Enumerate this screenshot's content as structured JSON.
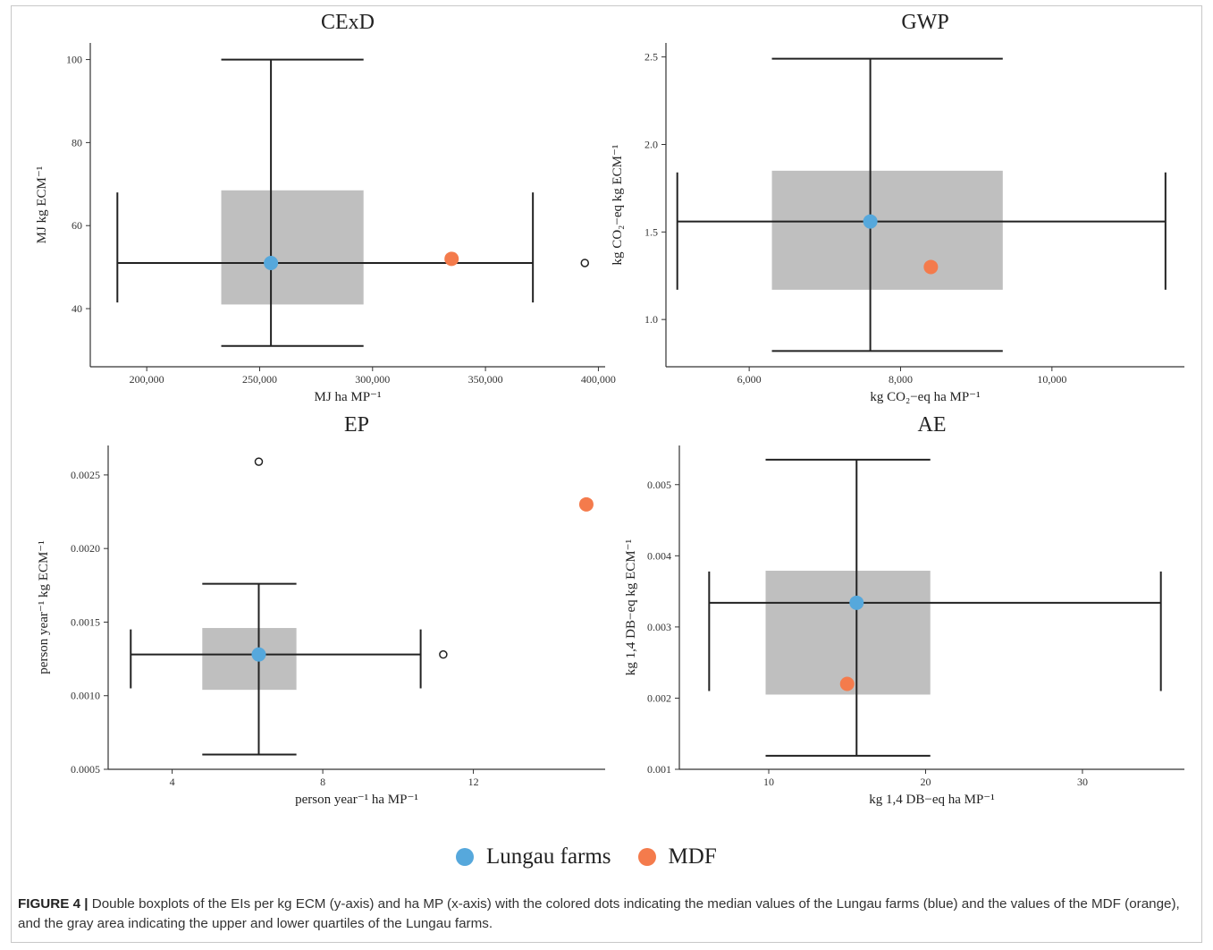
{
  "colors": {
    "lungau": "#56a8dc",
    "mdf": "#f47b4c",
    "quartile_box": "#bfbfbf",
    "whisker": "#222222"
  },
  "legend": {
    "lungau_label": "Lungau farms",
    "mdf_label": "MDF"
  },
  "caption": {
    "label": "FIGURE 4 |",
    "text": "Double boxplots of the EIs per kg ECM (y-axis) and ha MP (x-axis) with the colored dots indicating the median values of the Lungau farms (blue) and the values of the MDF (orange), and the gray area indicating the upper and lower quartiles of the Lungau farms."
  },
  "chart_data": [
    {
      "type": "double-boxplot",
      "title": "CExD",
      "xlabel": "MJ ha MP⁻¹",
      "ylabel": "MJ kg ECM⁻¹",
      "xlim": [
        175000,
        403000
      ],
      "ylim": [
        26,
        104
      ],
      "x_ticks": [
        200000,
        250000,
        300000,
        350000,
        400000
      ],
      "x_tick_labels": [
        "200,000",
        "250,000",
        "300,000",
        "350,000",
        "400,000"
      ],
      "y_ticks": [
        40,
        60,
        80,
        100
      ],
      "y_tick_labels": [
        "40",
        "60",
        "80",
        "100"
      ],
      "x_box": {
        "whisker_low": 187000,
        "q1": 233000,
        "median": 255000,
        "q3": 296000,
        "whisker_high": 371000
      },
      "y_box": {
        "whisker_low": 31,
        "q1": 41,
        "median": 51,
        "q3": 68.5,
        "whisker_high": 100
      },
      "whisker_cap_x": [
        41.5,
        68
      ],
      "whisker_cap_y": [
        233000,
        296000
      ],
      "lungau_median": {
        "x": 255000,
        "y": 51
      },
      "mdf": {
        "x": 335000,
        "y": 52
      },
      "outliers": [
        {
          "x": 394000,
          "y": 51
        }
      ]
    },
    {
      "type": "double-boxplot",
      "title": "GWP",
      "xlabel": "kg CO₂−eq ha MP⁻¹",
      "ylabel": "kg CO₂−eq kg ECM⁻¹",
      "xlim": [
        4900,
        11750
      ],
      "ylim": [
        0.73,
        2.58
      ],
      "x_ticks": [
        6000,
        8000,
        10000
      ],
      "x_tick_labels": [
        "6,000",
        "8,000",
        "10,000"
      ],
      "y_ticks": [
        1.0,
        1.5,
        2.0,
        2.5
      ],
      "y_tick_labels": [
        "1.0",
        "1.5",
        "2.0",
        "2.5"
      ],
      "x_box": {
        "whisker_low": 5050,
        "q1": 6300,
        "median": 7600,
        "q3": 9350,
        "whisker_high": 11500
      },
      "y_box": {
        "whisker_low": 0.82,
        "q1": 1.17,
        "median": 1.56,
        "q3": 1.85,
        "whisker_high": 2.49
      },
      "whisker_cap_x": [
        1.17,
        1.84
      ],
      "whisker_cap_y": [
        6300,
        9350
      ],
      "lungau_median": {
        "x": 7600,
        "y": 1.56
      },
      "mdf": {
        "x": 8400,
        "y": 1.3
      },
      "outliers": []
    },
    {
      "type": "double-boxplot",
      "title": "EP",
      "xlabel": "person year⁻¹ ha MP⁻¹",
      "ylabel": "person year⁻¹ kg ECM⁻¹",
      "xlim": [
        2.3,
        15.5
      ],
      "ylim": [
        0.0005,
        0.0027
      ],
      "x_ticks": [
        4,
        8,
        12
      ],
      "x_tick_labels": [
        "4",
        "8",
        "12"
      ],
      "y_ticks": [
        0.0005,
        0.001,
        0.0015,
        0.002,
        0.0025
      ],
      "y_tick_labels": [
        "0.0005",
        "0.0010",
        "0.0015",
        "0.0020",
        "0.0025"
      ],
      "x_box": {
        "whisker_low": 2.9,
        "q1": 4.8,
        "median": 6.3,
        "q3": 7.3,
        "whisker_high": 10.6
      },
      "y_box": {
        "whisker_low": 0.0006,
        "q1": 0.00104,
        "median": 0.00128,
        "q3": 0.00146,
        "whisker_high": 0.00176
      },
      "whisker_cap_x": [
        0.00105,
        0.00145
      ],
      "whisker_cap_y": [
        4.8,
        7.3
      ],
      "lungau_median": {
        "x": 6.3,
        "y": 0.00128
      },
      "mdf": {
        "x": 15.0,
        "y": 0.0023
      },
      "outliers": [
        {
          "x": 6.3,
          "y": 0.00259
        },
        {
          "x": 11.2,
          "y": 0.00128
        }
      ]
    },
    {
      "type": "double-boxplot",
      "title": "AE",
      "xlabel": "kg 1,4 DB−eq ha MP⁻¹",
      "ylabel": "kg 1,4 DB−eq kg ECM⁻¹",
      "xlim": [
        4.3,
        36.5
      ],
      "ylim": [
        0.001,
        0.00555
      ],
      "x_ticks": [
        10,
        20,
        30
      ],
      "x_tick_labels": [
        "10",
        "20",
        "30"
      ],
      "y_ticks": [
        0.001,
        0.002,
        0.003,
        0.004,
        0.005
      ],
      "y_tick_labels": [
        "0.001",
        "0.002",
        "0.003",
        "0.004",
        "0.005"
      ],
      "x_box": {
        "whisker_low": 6.2,
        "q1": 9.8,
        "median": 15.6,
        "q3": 20.3,
        "whisker_high": 35.0
      },
      "y_box": {
        "whisker_low": 0.00119,
        "q1": 0.00205,
        "median": 0.00334,
        "q3": 0.00379,
        "whisker_high": 0.00535
      },
      "whisker_cap_x": [
        0.0021,
        0.00378
      ],
      "whisker_cap_y": [
        9.8,
        20.3
      ],
      "lungau_median": {
        "x": 15.6,
        "y": 0.00334
      },
      "mdf": {
        "x": 15.0,
        "y": 0.0022
      },
      "outliers": []
    }
  ]
}
